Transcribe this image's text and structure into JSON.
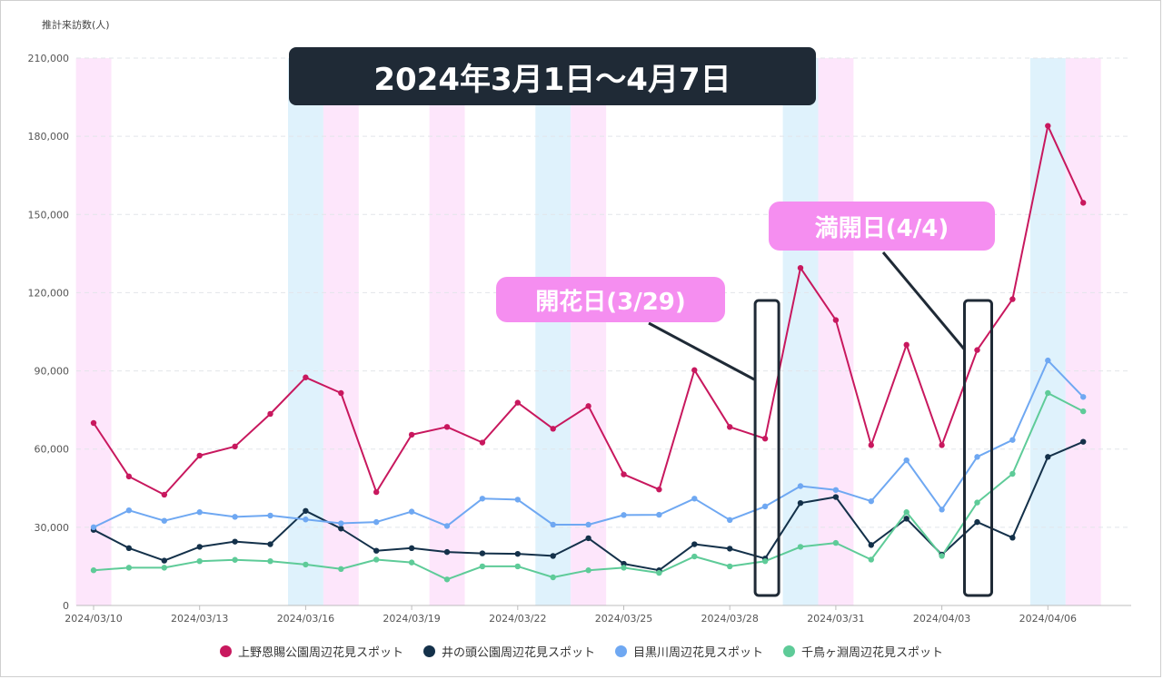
{
  "chart_data": {
    "type": "line",
    "ylabel": "推計来訪数(人)",
    "ylim": [
      0,
      210000
    ],
    "yticks": [
      0,
      30000,
      60000,
      90000,
      120000,
      150000,
      180000,
      210000
    ],
    "ytick_labels": [
      "0",
      "30,000",
      "60,000",
      "90,000",
      "120,000",
      "150,000",
      "180,000",
      "210,000"
    ],
    "grid": "horizontal-dashed",
    "legend_position": "bottom",
    "x": [
      "2024/03/10",
      "2024/03/11",
      "2024/03/12",
      "2024/03/13",
      "2024/03/14",
      "2024/03/15",
      "2024/03/16",
      "2024/03/17",
      "2024/03/18",
      "2024/03/19",
      "2024/03/20",
      "2024/03/21",
      "2024/03/22",
      "2024/03/23",
      "2024/03/24",
      "2024/03/25",
      "2024/03/26",
      "2024/03/27",
      "2024/03/28",
      "2024/03/29",
      "2024/03/30",
      "2024/03/31",
      "2024/04/01",
      "2024/04/02",
      "2024/04/03",
      "2024/04/04",
      "2024/04/05",
      "2024/04/06",
      "2024/04/07"
    ],
    "xtick_labels": [
      "2024/03/10",
      "2024/03/13",
      "2024/03/16",
      "2024/03/19",
      "2024/03/22",
      "2024/03/25",
      "2024/03/28",
      "2024/03/31",
      "2024/04/03",
      "2024/04/06"
    ],
    "xtick_indices": [
      0,
      3,
      6,
      9,
      12,
      15,
      18,
      21,
      24,
      27
    ],
    "saturday_color": "#dff2fc",
    "sunday_holiday_color": "#fde6fb",
    "saturday_indices": [
      6,
      13,
      20,
      27
    ],
    "sunday_holiday_indices": [
      0,
      7,
      10,
      14,
      21,
      28
    ],
    "series": [
      {
        "name": "上野恩賜公園周辺花見スポット",
        "color": "#c8185e",
        "values": [
          70000,
          49500,
          42500,
          57500,
          61000,
          73500,
          87500,
          81500,
          43500,
          65500,
          68500,
          62500,
          77800,
          67800,
          76500,
          50300,
          44500,
          90300,
          68500,
          64000,
          129500,
          109500,
          61500,
          100000,
          61500,
          98000,
          117500,
          184000,
          154500
        ]
      },
      {
        "name": "井の頭公園周辺花見スポット",
        "color": "#14314a",
        "values": [
          29000,
          22000,
          17200,
          22500,
          24500,
          23500,
          36300,
          29500,
          21000,
          22000,
          20500,
          20000,
          19800,
          19000,
          25800,
          16000,
          13500,
          23500,
          21800,
          18000,
          39300,
          41600,
          23200,
          33300,
          19500,
          32000,
          26000,
          57000,
          62800
        ]
      },
      {
        "name": "目黒川周辺花見スポット",
        "color": "#6fa8f2",
        "values": [
          30000,
          36500,
          32500,
          35800,
          34000,
          34500,
          33000,
          31500,
          32000,
          36000,
          30500,
          41000,
          40600,
          31000,
          31000,
          34700,
          34800,
          41000,
          32800,
          38000,
          45800,
          44300,
          40000,
          55700,
          36800,
          57000,
          63500,
          94000,
          80000
        ]
      },
      {
        "name": "千鳥ヶ淵周辺花見スポット",
        "color": "#5ecb98",
        "values": [
          13500,
          14500,
          14500,
          17000,
          17500,
          17000,
          15700,
          14000,
          17600,
          16500,
          10000,
          15000,
          15000,
          10800,
          13500,
          14500,
          12500,
          18800,
          15000,
          17000,
          22500,
          24000,
          17600,
          35800,
          19000,
          39500,
          50500,
          81500,
          74500
        ]
      }
    ],
    "annotations": {
      "title_banner": "2024年3月1日〜4月7日",
      "bloom_label": "開花日(3/29)",
      "full_bloom_label": "満開日(4/4)",
      "bloom_index": 19,
      "full_bloom_index": 25,
      "banner_color": "#1f2a36",
      "callout_color": "#f58ef0"
    }
  }
}
